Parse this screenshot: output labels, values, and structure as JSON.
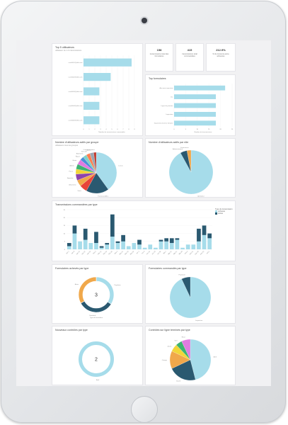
{
  "colors": {
    "light": "#a6dcea",
    "dark": "#2a5970",
    "orange": "#f0a84b"
  },
  "top_users": {
    "title": "Top 5 utilisateurs",
    "subtitle": "utilisateur du 1 nb transmissions",
    "xlabel": "Nombre de transmissions commandée",
    "chart_data": {
      "type": "bar",
      "orientation": "horizontal",
      "categories": [
        "user0401@ville.com",
        "user0402@ville.com",
        "user0403@ville.com",
        "user0404@ville.com",
        "user0405@ville.com"
      ],
      "values": [
        8.5,
        4.8,
        2.8,
        2.8,
        2.8
      ],
      "xlim": [
        0,
        10
      ],
      "xticks": [
        "0",
        "1",
        "2",
        "3",
        "4",
        "5",
        "6",
        "7",
        "8",
        "9"
      ]
    }
  },
  "kpis": [
    {
      "value": "158",
      "label": "transmissions total des formulaires"
    },
    {
      "value": "415",
      "label": "transmissions total commandées"
    },
    {
      "value": "212.9%",
      "label": "% de transmis-sions achevées"
    }
  ],
  "top_forms": {
    "title": "Top formulaires",
    "xlabel": "Nombre de transmissions",
    "chart_data": {
      "type": "bar",
      "orientation": "horizontal",
      "categories": [
        "Aire jeux inspection",
        "Inv.",
        "Ligne de peinture",
        "Inspection",
        "Inspections bornes fontaine"
      ],
      "values": [
        22,
        18,
        18,
        18,
        18
      ],
      "xlim": [
        0,
        25
      ],
      "xticks": [
        "0",
        "5",
        "10",
        "15",
        "20",
        "25"
      ]
    }
  },
  "users_by_group": {
    "title": "Nombre d'utilisateurs actifs par groupe",
    "subtitle": "utilisateurs tous les groupes",
    "chart_data": {
      "type": "pie",
      "labels": [
        "Loisirs",
        "Travaux publics",
        "Voirie",
        "Urbanisme",
        "Aqueduc",
        "Parcs",
        "Admin",
        "Génie",
        "Égout",
        "Bâtiments",
        "Sécurité",
        "Autres",
        "Communications"
      ],
      "values": [
        40,
        18,
        6,
        5,
        5,
        4,
        4,
        4,
        3,
        3,
        3,
        3,
        2
      ],
      "colors": [
        "#a6dcea",
        "#2a5970",
        "#e8443a",
        "#f0a84b",
        "#8e44ad",
        "#f1d63a",
        "#3cb371",
        "#e07be0",
        "#4a90d9",
        "#7fd1c7",
        "#ff7f50",
        "#9aa5b1",
        "#c0392b"
      ]
    }
  },
  "users_by_type": {
    "title": "Nombre d'utilisateurs actifs par rôle",
    "chart_data": {
      "type": "pie",
      "labels": [
        "Opérateur",
        "Administrateur",
        "Superviseur"
      ],
      "values": [
        92,
        5,
        3
      ],
      "colors": [
        "#a6dcea",
        "#2a5970",
        "#f0a84b"
      ]
    }
  },
  "transmissions_by_type": {
    "title": "Transmissions commandées par type",
    "legend_title": "Type de transmission",
    "legend": [
      "Achevée",
      "Active"
    ],
    "chart_data": {
      "type": "bar",
      "stacked": true,
      "categories": [
        "Jan 1",
        "Jan 8",
        "Jan 15",
        "Jan 22",
        "Jan 29",
        "Fév 5",
        "Fév 12",
        "Fév 19",
        "Fév 26",
        "Mar 5",
        "Mar 12",
        "Mar 19",
        "Mar 26",
        "Avr 2",
        "Avr 9",
        "Avr 16",
        "Avr 23",
        "Avr 30",
        "Mai 7",
        "Mai 14",
        "Mai 21",
        "Mai 28",
        "Juin 4",
        "Juin 11",
        "Juin 18",
        "Juin 25",
        "Juil 2"
      ],
      "series": [
        {
          "name": "Achevée",
          "values": [
            2,
            10,
            5,
            6,
            4,
            4,
            1,
            3,
            8,
            4,
            5,
            2,
            4,
            3,
            1,
            3,
            1,
            5,
            5,
            4,
            6,
            1,
            3,
            3,
            5,
            9,
            7
          ]
        },
        {
          "name": "Active",
          "values": [
            2,
            5,
            0,
            7,
            0,
            7,
            1,
            1,
            14,
            1,
            4,
            0,
            0,
            3,
            0,
            0,
            0,
            1,
            2,
            3,
            1,
            0,
            0,
            0,
            8,
            6,
            3
          ]
        }
      ],
      "ylim": [
        0,
        25
      ]
    }
  },
  "forms_by_type": {
    "title": "Formulaires achevés par type",
    "center_value": "3",
    "xlabel": "Type de formulaire",
    "chart_data": {
      "type": "pie",
      "donut": true,
      "labels": [
        "Populaire",
        "Standard",
        "Autre"
      ],
      "values": [
        34,
        33,
        33
      ],
      "colors": [
        "#a6dcea",
        "#2a5970",
        "#f0a84b"
      ]
    }
  },
  "forms_by_type_pie": {
    "title": "Formulaires commandés par type",
    "chart_data": {
      "type": "pie",
      "labels": [
        "Inspection",
        "Populaire"
      ],
      "values": [
        93,
        7
      ],
      "colors": [
        "#a6dcea",
        "#2a5970"
      ]
    }
  },
  "new_forms": {
    "title": "Nouveaux contrôles par type",
    "center_value": "2",
    "chart_data": {
      "type": "pie",
      "donut": true,
      "labels": [
        "Actif"
      ],
      "values": [
        100
      ],
      "colors": [
        "#a6dcea"
      ]
    }
  },
  "controls_by_type": {
    "title": "Contrôles sur ligne terminés par type",
    "chart_data": {
      "type": "pie",
      "labels": [
        "Actif",
        "Inactif",
        "Orange",
        "Jaune",
        "Vert",
        "Rose"
      ],
      "values": [
        46,
        22,
        14,
        6,
        5,
        7
      ],
      "colors": [
        "#a6dcea",
        "#2a5970",
        "#f0a84b",
        "#f1d63a",
        "#3cb371",
        "#e07be0"
      ]
    }
  }
}
